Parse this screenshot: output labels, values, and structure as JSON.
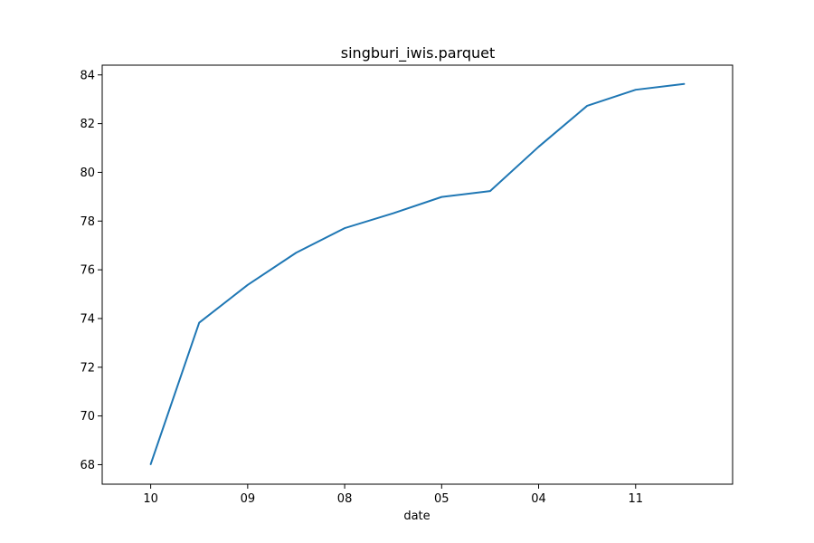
{
  "chart_data": {
    "type": "line",
    "title": "singburi_iwis.parquet",
    "xlabel": "date",
    "ylabel": "",
    "x_tick_labels": [
      "10",
      "09",
      "08",
      "05",
      "04",
      "11"
    ],
    "x": [
      0,
      0.5,
      1,
      1.5,
      2,
      2.5,
      3,
      3.5,
      4,
      4.5,
      5,
      5.5
    ],
    "y_ticks": [
      68,
      70,
      72,
      74,
      76,
      78,
      80,
      82,
      84
    ],
    "ylim": [
      67.2,
      84.4
    ],
    "grid": false,
    "series": [
      {
        "color": "#1f77b4",
        "values": [
          68.02,
          73.83,
          75.38,
          76.7,
          77.71,
          78.32,
          78.99,
          79.23,
          81.05,
          82.73,
          83.39,
          83.63
        ]
      }
    ]
  }
}
